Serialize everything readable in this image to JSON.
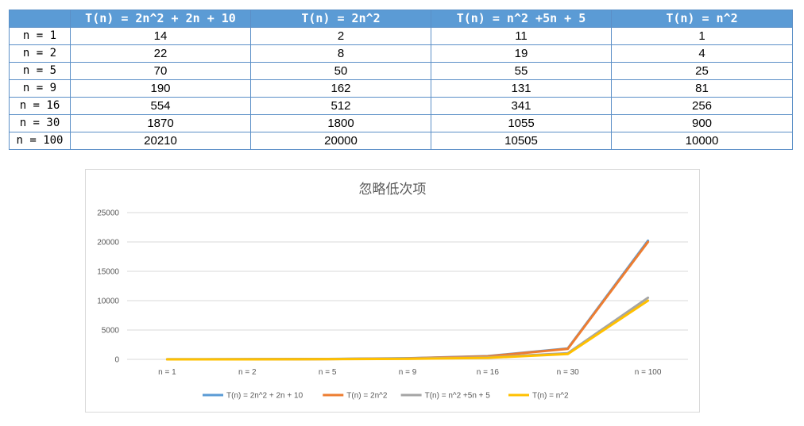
{
  "table": {
    "headers": [
      "",
      "T(n) = 2n^2 + 2n + 10",
      "T(n) = 2n^2",
      "T(n) = n^2 +5n + 5",
      "T(n) = n^2"
    ],
    "rows": [
      {
        "label": "n = 1",
        "cells": [
          "14",
          "2",
          "11",
          "1"
        ]
      },
      {
        "label": "n = 2",
        "cells": [
          "22",
          "8",
          "19",
          "4"
        ]
      },
      {
        "label": "n = 5",
        "cells": [
          "70",
          "50",
          "55",
          "25"
        ]
      },
      {
        "label": "n = 9",
        "cells": [
          "190",
          "162",
          "131",
          "81"
        ]
      },
      {
        "label": "n = 16",
        "cells": [
          "554",
          "512",
          "341",
          "256"
        ]
      },
      {
        "label": "n = 30",
        "cells": [
          "1870",
          "1800",
          "1055",
          "900"
        ]
      },
      {
        "label": "n = 100",
        "cells": [
          "20210",
          "20000",
          "10505",
          "10000"
        ]
      }
    ]
  },
  "chart_data": {
    "type": "line",
    "title": "忽略低次项",
    "categories": [
      "n = 1",
      "n = 2",
      "n = 5",
      "n = 9",
      "n = 16",
      "n = 30",
      "n = 100"
    ],
    "series": [
      {
        "name": "T(n) = 2n^2 + 2n + 10",
        "color": "#5b9bd5",
        "values": [
          14,
          22,
          70,
          190,
          554,
          1870,
          20210
        ]
      },
      {
        "name": "T(n) = 2n^2",
        "color": "#ed7d31",
        "values": [
          2,
          8,
          50,
          162,
          512,
          1800,
          20000
        ]
      },
      {
        "name": "T(n) = n^2 +5n + 5",
        "color": "#a5a5a5",
        "values": [
          11,
          19,
          55,
          131,
          341,
          1055,
          10505
        ]
      },
      {
        "name": "T(n) = n^2",
        "color": "#ffc000",
        "values": [
          1,
          4,
          25,
          81,
          256,
          900,
          10000
        ]
      }
    ],
    "ylim": [
      0,
      25000
    ],
    "yticks": [
      0,
      5000,
      10000,
      15000,
      20000,
      25000
    ],
    "grid": true,
    "legend": "bottom",
    "xlabel": "",
    "ylabel": ""
  }
}
